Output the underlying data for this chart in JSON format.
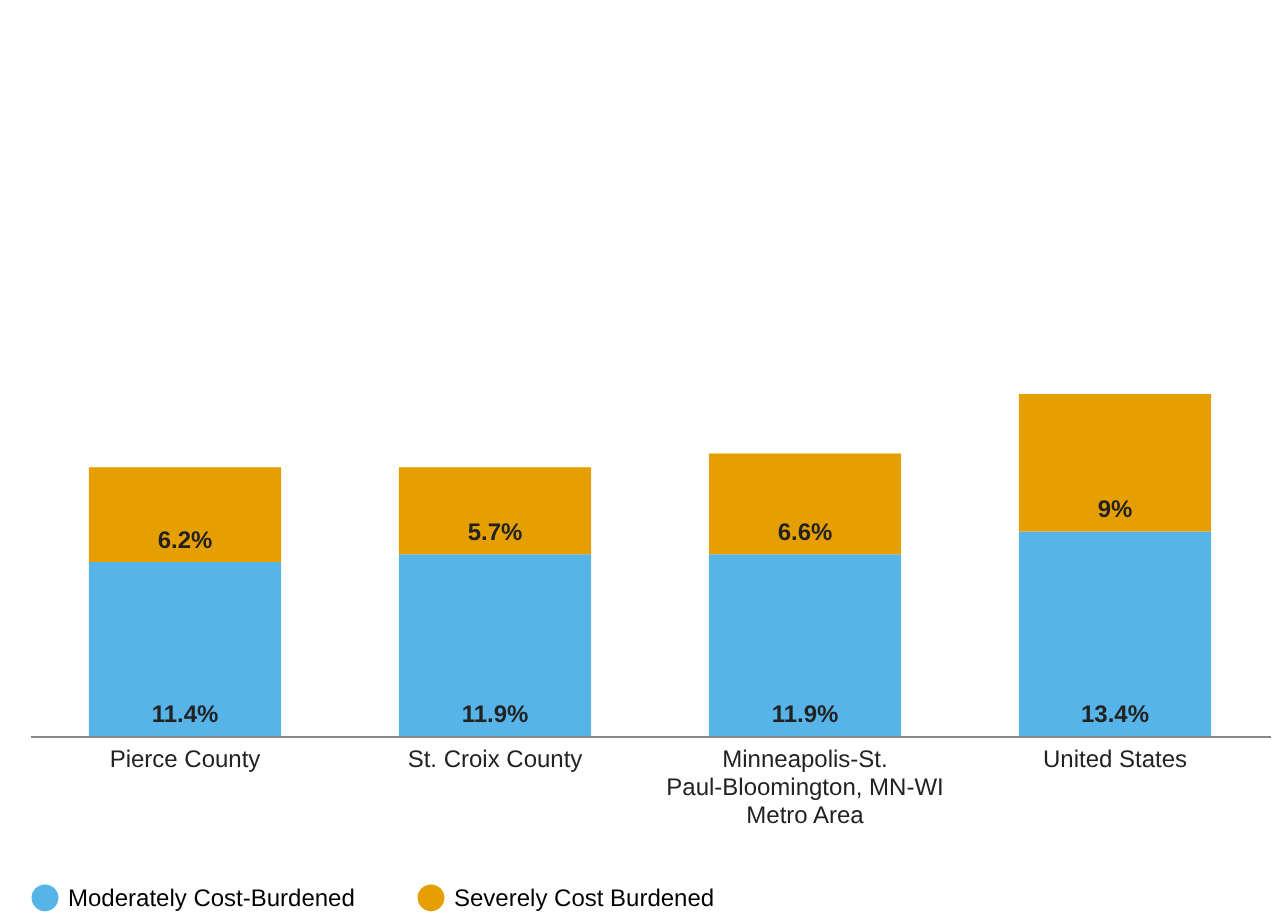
{
  "chart_data": {
    "type": "bar",
    "stacked": true,
    "categories": [
      "Pierce County",
      "St. Croix County",
      "Minneapolis-St. Paul-Bloomington, MN-WI Metro Area",
      "United States"
    ],
    "series": [
      {
        "name": "Moderately Cost-Burdened",
        "color": "#56b4e9",
        "values": [
          11.4,
          11.9,
          11.9,
          13.4
        ],
        "value_labels": [
          "11.4%",
          "11.9%",
          "11.9%",
          "13.4%"
        ]
      },
      {
        "name": "Severely Cost Burdened",
        "color": "#e69f00",
        "values": [
          6.2,
          5.7,
          6.6,
          9
        ],
        "value_labels": [
          "6.2%",
          "5.7%",
          "6.6%",
          "9%"
        ]
      }
    ],
    "legend": "bottom",
    "grid": false
  }
}
